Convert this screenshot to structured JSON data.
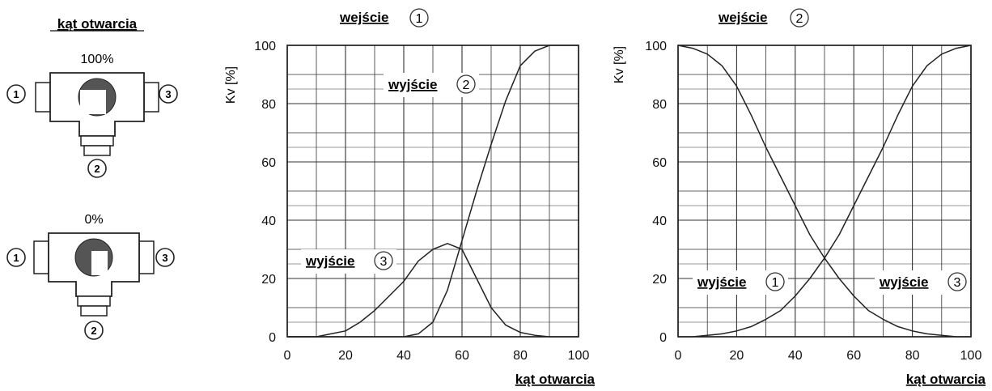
{
  "schematic": {
    "title": "kąt otwarcia",
    "valves": [
      {
        "label": "100%",
        "ports": [
          "1",
          "3",
          "2"
        ]
      },
      {
        "label": "0%",
        "ports": [
          "1",
          "3",
          "2"
        ]
      }
    ]
  },
  "chart_data": [
    {
      "type": "line",
      "title": "wejście",
      "title_port": "1",
      "xlabel": "kąt otwarcia",
      "ylabel": "Kv [%]",
      "xlim": [
        0,
        100
      ],
      "ylim": [
        0,
        100
      ],
      "xticks": [
        "0",
        "20",
        "40",
        "60",
        "80",
        "100"
      ],
      "yticks": [
        "0",
        "20",
        "40",
        "60",
        "80",
        "100"
      ],
      "grid": true,
      "series": [
        {
          "name": "wyjście",
          "port": "2",
          "x": [
            0,
            40,
            45,
            50,
            55,
            60,
            65,
            70,
            75,
            80,
            85,
            90,
            95,
            100
          ],
          "y": [
            0,
            0,
            1,
            5,
            16,
            33,
            50,
            66,
            81,
            93,
            98,
            100,
            100,
            100
          ]
        },
        {
          "name": "wyjście",
          "port": "3",
          "x": [
            0,
            10,
            15,
            20,
            25,
            30,
            35,
            40,
            45,
            50,
            55,
            60,
            65,
            70,
            75,
            80,
            85,
            90,
            95,
            100
          ],
          "y": [
            0,
            0,
            1,
            2,
            5,
            9,
            14,
            19,
            26,
            30,
            32,
            30,
            20,
            10,
            4,
            1.5,
            0.5,
            0,
            0,
            0
          ]
        }
      ],
      "annotations": [
        {
          "text": "wyjście",
          "port": "2"
        },
        {
          "text": "wyjście",
          "port": "3"
        }
      ]
    },
    {
      "type": "line",
      "title": "wejście",
      "title_port": "2",
      "xlabel": "kąt otwarcia",
      "ylabel": "Kv [%]",
      "xlim": [
        0,
        100
      ],
      "ylim": [
        0,
        100
      ],
      "xticks": [
        "0",
        "20",
        "40",
        "60",
        "80",
        "100"
      ],
      "yticks": [
        "0",
        "20",
        "40",
        "60",
        "80",
        "100"
      ],
      "grid": true,
      "series": [
        {
          "name": "wyjście",
          "port": "1",
          "x": [
            0,
            5,
            10,
            15,
            20,
            25,
            30,
            35,
            40,
            45,
            50,
            55,
            60,
            65,
            70,
            75,
            80,
            85,
            90,
            95,
            100
          ],
          "y": [
            100,
            99,
            97,
            93,
            86,
            76,
            65,
            55,
            45,
            35,
            27,
            20,
            14,
            9,
            6,
            3.5,
            2,
            1,
            0.5,
            0,
            0
          ]
        },
        {
          "name": "wyjście",
          "port": "3",
          "x": [
            0,
            5,
            10,
            15,
            20,
            25,
            30,
            35,
            40,
            45,
            50,
            55,
            60,
            65,
            70,
            75,
            80,
            85,
            90,
            95,
            100
          ],
          "y": [
            0,
            0,
            0.5,
            1,
            2,
            3.5,
            6,
            9,
            14,
            20,
            27,
            35,
            45,
            55,
            65,
            76,
            86,
            93,
            97,
            99,
            100
          ]
        }
      ],
      "annotations": [
        {
          "text": "wyjście",
          "port": "1"
        },
        {
          "text": "wyjście",
          "port": "3"
        }
      ]
    }
  ]
}
